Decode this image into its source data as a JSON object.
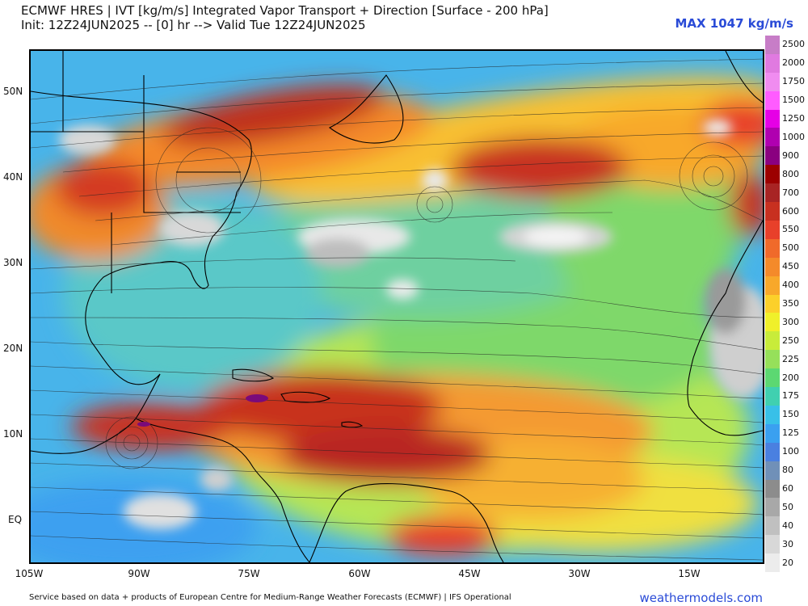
{
  "header": {
    "line1": "ECMWF HRES | IVT [kg/m/s] Integrated Vapor Transport + Direction [Surface - 200 hPa]",
    "line2": "Init: 12Z24JUN2025 -- [0] hr --> Valid Tue 12Z24JUN2025",
    "max_label": "MAX 1047 kg/m/s"
  },
  "axes": {
    "lat_labels": [
      "50N",
      "40N",
      "30N",
      "20N",
      "10N",
      "EQ"
    ],
    "lon_labels": [
      "105W",
      "90W",
      "75W",
      "60W",
      "45W",
      "30W",
      "15W"
    ]
  },
  "colorbar": {
    "levels": [
      "2500",
      "2000",
      "1750",
      "1500",
      "1250",
      "1000",
      "900",
      "800",
      "700",
      "600",
      "550",
      "500",
      "450",
      "400",
      "350",
      "300",
      "250",
      "225",
      "200",
      "175",
      "150",
      "125",
      "100",
      "80",
      "60",
      "50",
      "40",
      "30",
      "20"
    ],
    "colors": [
      "#c77dc7",
      "#e07ae0",
      "#f08cf0",
      "#ff5cff",
      "#e600e6",
      "#b000b0",
      "#8a0080",
      "#9c0000",
      "#a82424",
      "#c83020",
      "#e8402a",
      "#f06a2a",
      "#f48a2a",
      "#f8a82a",
      "#fcd02a",
      "#f0f02a",
      "#c8ec3a",
      "#96e05a",
      "#5cd872",
      "#40d0b0",
      "#38c0e8",
      "#3aa0f0",
      "#4a80e0",
      "#7090b8",
      "#8c8c8c",
      "#a8a8a8",
      "#c0c0c0",
      "#d8d8d8",
      "#ececec"
    ]
  },
  "footer": {
    "credit": "Service based on data + products of European Centre for Medium-Range Weather Forecasts (ECMWF) | IFS Operational",
    "site": "weathermodels.com"
  }
}
